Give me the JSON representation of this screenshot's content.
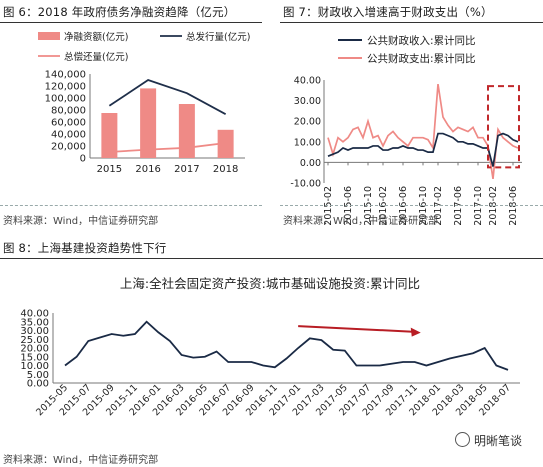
{
  "fig6": {
    "title": "图 6：2018 年政府债务净融资趋降（亿元）",
    "source": "资料来源：Wind，中信证券研究部",
    "chart_data": {
      "type": "bar",
      "categories": [
        "2015",
        "2016",
        "2017",
        "2018"
      ],
      "series": [
        {
          "name": "净融资额(亿元)",
          "kind": "bar",
          "color": "#ef8a86",
          "values": [
            75000,
            116000,
            90000,
            47000
          ]
        },
        {
          "name": "总发行量(亿元)",
          "kind": "line",
          "color": "#1f2f4a",
          "values": [
            87000,
            130000,
            108000,
            73000
          ]
        },
        {
          "name": "总偿还量(亿元)",
          "kind": "line",
          "color": "#ef8a86",
          "values": [
            10000,
            14000,
            17000,
            25000
          ]
        }
      ],
      "ylim": [
        0,
        140000
      ],
      "yticks": [
        "0",
        "20,000",
        "40,000",
        "60,000",
        "80,000",
        "100,000",
        "120,000",
        "140,000"
      ]
    }
  },
  "fig7": {
    "title": "图 7：财政收入增速高于财政支出（%）",
    "source": "资料来源：Wind，中信证券研究部",
    "chart_data": {
      "type": "line",
      "x": [
        "2015-02",
        "2015-03",
        "2015-04",
        "2015-05",
        "2015-06",
        "2015-07",
        "2015-08",
        "2015-09",
        "2015-10",
        "2015-11",
        "2015-12",
        "2016-02",
        "2016-03",
        "2016-04",
        "2016-05",
        "2016-06",
        "2016-07",
        "2016-08",
        "2016-09",
        "2016-10",
        "2016-11",
        "2016-12",
        "2017-02",
        "2017-03",
        "2017-04",
        "2017-05",
        "2017-06",
        "2017-07",
        "2017-08",
        "2017-09",
        "2017-10",
        "2017-11",
        "2017-12",
        "2018-02",
        "2018-03",
        "2018-04",
        "2018-05",
        "2018-06",
        "2018-07"
      ],
      "xticks": [
        "2015-02",
        "2015-06",
        "2015-10",
        "2016-02",
        "2016-06",
        "2016-10",
        "2017-02",
        "2017-06",
        "2017-10",
        "2018-02",
        "2018-06"
      ],
      "series": [
        {
          "name": "公共财政收入:累计同比",
          "color": "#1a2a45",
          "values": [
            3,
            4,
            5,
            7,
            6,
            7,
            7,
            7,
            7,
            8,
            8,
            6,
            6,
            7,
            7,
            8,
            7,
            7,
            6,
            6,
            5,
            5,
            14,
            14,
            13,
            12,
            10,
            10,
            9,
            9,
            8,
            7,
            7,
            -2,
            13,
            14,
            13,
            11,
            10
          ]
        },
        {
          "name": "公共财政支出:累计同比",
          "color": "#ef8a86",
          "values": [
            12,
            4,
            12,
            10,
            12,
            16,
            17,
            12,
            20,
            12,
            13,
            8,
            13,
            15,
            12,
            10,
            8,
            12,
            12,
            12,
            11,
            7,
            38,
            22,
            18,
            15,
            17,
            16,
            15,
            17,
            12,
            12,
            8,
            -8,
            16,
            12,
            10,
            8,
            7
          ]
        }
      ],
      "ylim": [
        -10,
        40
      ],
      "yticks": [
        "-10.00",
        "0.00",
        "10.00",
        "20.00",
        "30.00",
        "40.00"
      ]
    }
  },
  "fig8": {
    "title": "图 8：上海基建投资趋势性下行",
    "source": "资料来源：Wind，中信证券研究部",
    "watermark": "明晰笔谈",
    "chart_data": {
      "type": "line",
      "title": "上海:全社会固定资产投资:城市基础设施投资:累计同比",
      "x": [
        "2015-05",
        "2015-06",
        "2015-07",
        "2015-08",
        "2015-09",
        "2015-10",
        "2015-11",
        "2015-12",
        "2016-01",
        "2016-02",
        "2016-03",
        "2016-04",
        "2016-05",
        "2016-06",
        "2016-07",
        "2016-08",
        "2016-09",
        "2016-10",
        "2016-11",
        "2016-12",
        "2017-01",
        "2017-02",
        "2017-03",
        "2017-04",
        "2017-05",
        "2017-06",
        "2017-07",
        "2017-08",
        "2017-09",
        "2017-10",
        "2017-11",
        "2017-12",
        "2018-01",
        "2018-02",
        "2018-03",
        "2018-04",
        "2018-05",
        "2018-06",
        "2018-07"
      ],
      "xticks": [
        "2015-05",
        "2015-07",
        "2015-09",
        "2015-11",
        "2016-01",
        "2016-03",
        "2016-05",
        "2016-07",
        "2016-09",
        "2016-11",
        "2017-01",
        "2017-03",
        "2017-05",
        "2017-07",
        "2017-09",
        "2017-11",
        "2018-01",
        "2018-03",
        "2018-05",
        "2018-07"
      ],
      "series": [
        {
          "name": "上海:全社会固定资产投资:城市基础设施投资:累计同比",
          "color": "#1a2a45",
          "values": [
            10,
            15,
            24,
            26,
            28,
            27,
            28,
            35,
            29,
            24,
            16,
            14.5,
            15,
            18,
            12,
            12,
            12,
            10,
            9,
            14,
            20,
            25.5,
            24.5,
            19,
            18.5,
            10,
            10,
            10,
            11,
            12,
            12,
            10,
            12,
            14,
            15.5,
            17,
            20,
            10,
            7.5
          ]
        }
      ],
      "ylim": [
        0,
        40
      ],
      "yticks": [
        "0.00",
        "5.00",
        "10.00",
        "15.00",
        "20.00",
        "25.00",
        "30.00",
        "35.00",
        "40.00"
      ]
    }
  }
}
